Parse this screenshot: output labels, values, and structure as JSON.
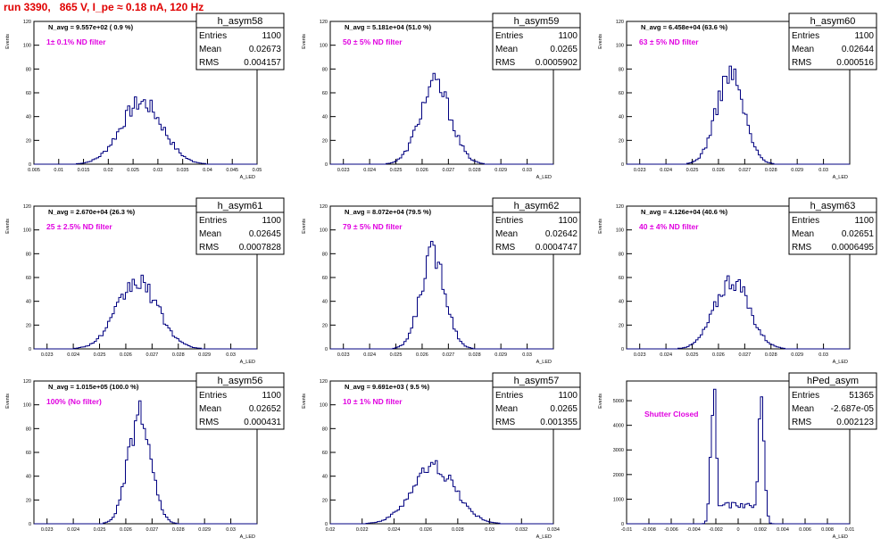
{
  "header": {
    "title": "run 3390,   865 V, I_pe ≈ 0.18 nA, 120 Hz"
  },
  "colors": {
    "histogram": "#000080",
    "title": "#e00000",
    "filter_label": "#e000e0",
    "frame": "#000000"
  },
  "chart_data": [
    {
      "type": "histogram",
      "name": "h_asym58",
      "navg": "N_avg = 9.557e+02 ( 0.9 %)",
      "filter": "1± 0.1% ND filter",
      "stats": {
        "entries": "1100",
        "mean": "0.02673",
        "rms": "0.004157"
      },
      "xlim": [
        0.005,
        0.05
      ],
      "ylim": [
        0,
        120
      ],
      "xticks": [
        "0.005",
        "0.01",
        "0.015",
        "0.02",
        "0.025",
        "0.03",
        "0.035",
        "0.04",
        "0.045",
        "0.05"
      ],
      "yticks": [
        "0",
        "20",
        "40",
        "60",
        "80",
        "100",
        "120"
      ],
      "xlabel": "A_LED",
      "ylabel": "Events",
      "peak": 52,
      "mean": 0.02673,
      "sigma": 0.0042
    },
    {
      "type": "histogram",
      "name": "h_asym59",
      "navg": "N_avg = 5.181e+04 (51.0 %)",
      "filter": "50 ± 5% ND filter",
      "stats": {
        "entries": "1100",
        "mean": "0.0265",
        "rms": "0.0005902"
      },
      "xlim": [
        0.0225,
        0.031
      ],
      "ylim": [
        0,
        120
      ],
      "xticks": [
        "0.023",
        "0.024",
        "0.025",
        "0.026",
        "0.027",
        "0.028",
        "0.029",
        "0.03"
      ],
      "yticks": [
        "0",
        "20",
        "40",
        "60",
        "80",
        "100",
        "120"
      ],
      "xlabel": "A_LED",
      "ylabel": "Events",
      "peak": 67,
      "mean": 0.0265,
      "sigma": 0.00059
    },
    {
      "type": "histogram",
      "name": "h_asym60",
      "navg": "N_avg = 6.458e+04 (63.6 %)",
      "filter": "63 ± 5% ND filter",
      "stats": {
        "entries": "1100",
        "mean": "0.02644",
        "rms": "0.000516"
      },
      "xlim": [
        0.0225,
        0.031
      ],
      "ylim": [
        0,
        120
      ],
      "xticks": [
        "0.023",
        "0.024",
        "0.025",
        "0.026",
        "0.027",
        "0.028",
        "0.029",
        "0.03"
      ],
      "yticks": [
        "0",
        "20",
        "40",
        "60",
        "80",
        "100",
        "120"
      ],
      "xlabel": "A_LED",
      "ylabel": "Events",
      "peak": 76,
      "mean": 0.02644,
      "sigma": 0.00052
    },
    {
      "type": "histogram",
      "name": "h_asym61",
      "navg": "N_avg = 2.670e+04 (26.3 %)",
      "filter": "25 ± 2.5% ND filter",
      "stats": {
        "entries": "1100",
        "mean": "0.02645",
        "rms": "0.0007828"
      },
      "xlim": [
        0.0225,
        0.031
      ],
      "ylim": [
        0,
        120
      ],
      "xticks": [
        "0.023",
        "0.024",
        "0.025",
        "0.026",
        "0.027",
        "0.028",
        "0.029",
        "0.03"
      ],
      "yticks": [
        "0",
        "20",
        "40",
        "60",
        "80",
        "100",
        "120"
      ],
      "xlabel": "A_LED",
      "ylabel": "Events",
      "peak": 56,
      "mean": 0.02645,
      "sigma": 0.00078
    },
    {
      "type": "histogram",
      "name": "h_asym62",
      "navg": "N_avg = 8.072e+04 (79.5 %)",
      "filter": "79 ± 5% ND filter",
      "stats": {
        "entries": "1100",
        "mean": "0.02642",
        "rms": "0.0004747"
      },
      "xlim": [
        0.0225,
        0.031
      ],
      "ylim": [
        0,
        120
      ],
      "xticks": [
        "0.023",
        "0.024",
        "0.025",
        "0.026",
        "0.027",
        "0.028",
        "0.029",
        "0.03"
      ],
      "yticks": [
        "0",
        "20",
        "40",
        "60",
        "80",
        "100",
        "120"
      ],
      "xlabel": "A_LED",
      "ylabel": "Events",
      "peak": 80,
      "mean": 0.02642,
      "sigma": 0.00047
    },
    {
      "type": "histogram",
      "name": "h_asym63",
      "navg": "N_avg = 4.126e+04 (40.6 %)",
      "filter": "40 ± 4% ND filter",
      "stats": {
        "entries": "1100",
        "mean": "0.02651",
        "rms": "0.0006495"
      },
      "xlim": [
        0.0225,
        0.031
      ],
      "ylim": [
        0,
        120
      ],
      "xticks": [
        "0.023",
        "0.024",
        "0.025",
        "0.026",
        "0.027",
        "0.028",
        "0.029",
        "0.03"
      ],
      "yticks": [
        "0",
        "20",
        "40",
        "60",
        "80",
        "100",
        "120"
      ],
      "xlabel": "A_LED",
      "ylabel": "Events",
      "peak": 58,
      "mean": 0.02651,
      "sigma": 0.00065
    },
    {
      "type": "histogram",
      "name": "h_asym56",
      "navg": "N_avg = 1.015e+05 (100.0 %)",
      "filter": "100% (No filter)",
      "stats": {
        "entries": "1100",
        "mean": "0.02652",
        "rms": "0.000431"
      },
      "xlim": [
        0.0225,
        0.031
      ],
      "ylim": [
        0,
        120
      ],
      "xticks": [
        "0.023",
        "0.024",
        "0.025",
        "0.026",
        "0.027",
        "0.028",
        "0.029",
        "0.03"
      ],
      "yticks": [
        "0",
        "20",
        "40",
        "60",
        "80",
        "100",
        "120"
      ],
      "xlabel": "A_LED",
      "ylabel": "Events",
      "peak": 90,
      "mean": 0.02652,
      "sigma": 0.00043
    },
    {
      "type": "histogram",
      "name": "h_asym57",
      "navg": "N_avg = 9.691e+03 ( 9.5 %)",
      "filter": "10 ± 1% ND filter",
      "stats": {
        "entries": "1100",
        "mean": "0.0265",
        "rms": "0.001355"
      },
      "xlim": [
        0.02,
        0.034
      ],
      "ylim": [
        0,
        120
      ],
      "xticks": [
        "0.02",
        "0.022",
        "0.024",
        "0.026",
        "0.028",
        "0.03",
        "0.032",
        "0.034"
      ],
      "yticks": [
        "0",
        "20",
        "40",
        "60",
        "80",
        "100",
        "120"
      ],
      "xlabel": "A_LED",
      "ylabel": "Events",
      "peak": 48,
      "mean": 0.0265,
      "sigma": 0.00136
    },
    {
      "type": "histogram",
      "name": "hPed_asym",
      "navg": "",
      "filter": "Shutter Closed",
      "stats": {
        "entries": "51365",
        "mean": "-2.687e-05",
        "rms": "0.002123"
      },
      "xlim": [
        -0.01,
        0.01
      ],
      "ylim": [
        0,
        5800
      ],
      "xticks": [
        "-0.01",
        "-0.008",
        "-0.006",
        "-0.004",
        "-0.002",
        "0",
        "0.002",
        "0.004",
        "0.006",
        "0.008",
        "0.01"
      ],
      "yticks": [
        "0",
        "1000",
        "2000",
        "3000",
        "4000",
        "5000"
      ],
      "xlabel": "A_LED",
      "ylabel": "Events",
      "peak": 5400,
      "mean": -3e-05,
      "sigma": 0.0021,
      "bimodal": true
    }
  ]
}
